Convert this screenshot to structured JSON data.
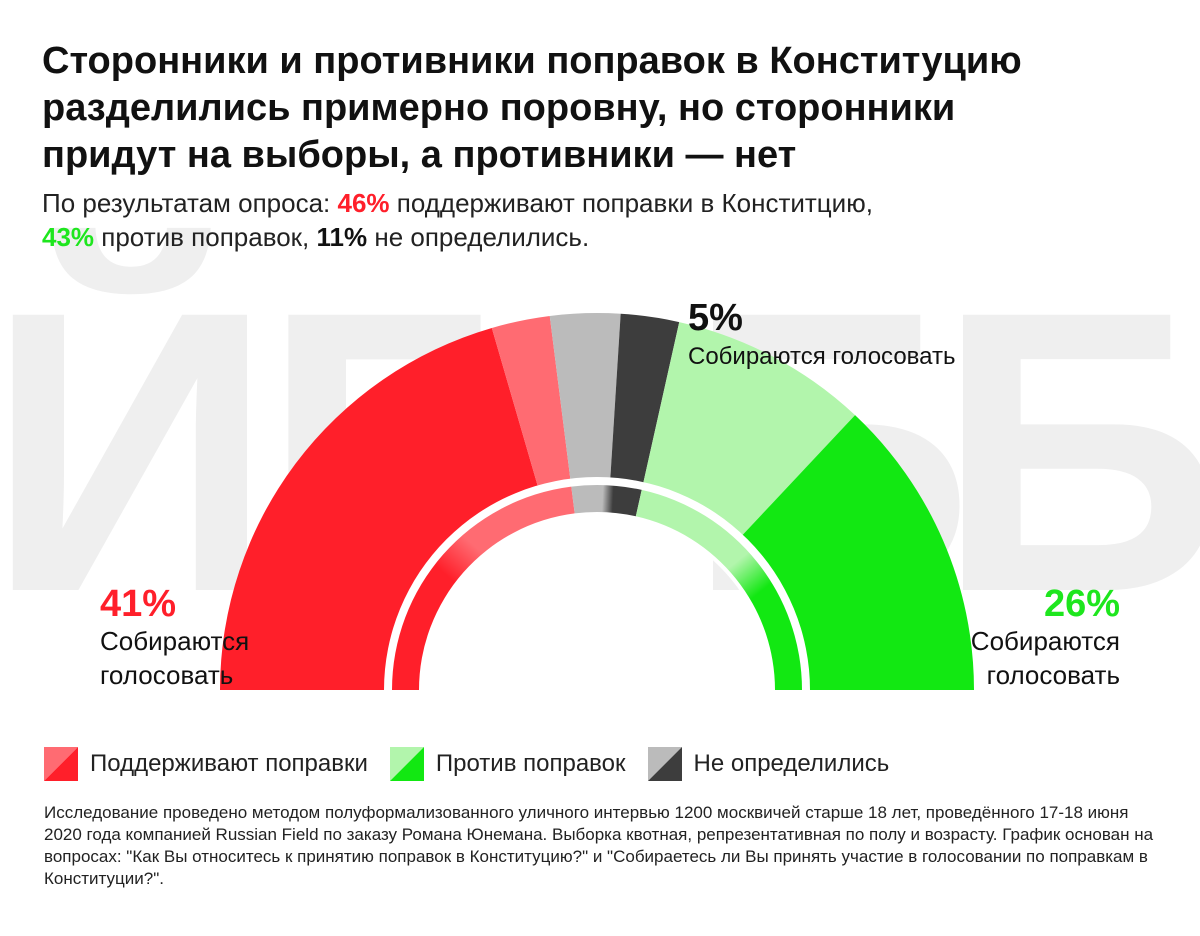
{
  "header": {
    "title": "Сторонники и противники поправок в Конституцию\nразделились примерно поровну, но сторонники\nпридут на выборы, а противники — нет",
    "subtitle": {
      "part1": "По результатам опроса: ",
      "support_pct": "46%",
      "part2": "  поддерживают поправки в Конститцию,",
      "against_pct": "43%",
      "part3": " против поправок, ",
      "undecided_pct": "11%",
      "part4": " не определились."
    }
  },
  "chart_data": {
    "type": "pie",
    "title": "",
    "shape": "semicircle-donut",
    "outer_ring": [
      {
        "group": "support",
        "voting": "yes",
        "value": 41,
        "color": "#ff1f2a"
      },
      {
        "group": "support",
        "voting": "no",
        "value": 5,
        "color": "#ff6b72"
      },
      {
        "group": "undecided",
        "voting": "no",
        "value": 6,
        "color": "#bbbbbb"
      },
      {
        "group": "undecided",
        "voting": "yes",
        "value": 5,
        "color": "#3d3d3d"
      },
      {
        "group": "against",
        "voting": "no",
        "value": 17,
        "color": "#b2f5ac"
      },
      {
        "group": "against",
        "voting": "yes",
        "value": 26,
        "color": "#12e812"
      }
    ],
    "inner_ring": [
      {
        "group": "support",
        "value": 46,
        "colors": [
          "#ff1f2a",
          "#ff6b72"
        ]
      },
      {
        "group": "undecided",
        "value": 11,
        "colors": [
          "#bbbbbb",
          "#3d3d3d"
        ]
      },
      {
        "group": "against",
        "value": 43,
        "colors": [
          "#b2f5ac",
          "#12e812"
        ]
      }
    ],
    "annotations": [
      {
        "for": "support-voting",
        "value": "41%",
        "text": "Собираются\nголосовать",
        "color": "#ff1f2a"
      },
      {
        "for": "undecided-voting",
        "value": "5%",
        "text": "Собираются голосовать",
        "color": "#111111"
      },
      {
        "for": "against-voting",
        "value": "26%",
        "text": "Собираются\nголосовать",
        "color": "#1ee61e"
      }
    ]
  },
  "watermark": {
    "letters": [
      "Й",
      "Г",
      "Б",
      "Б"
    ],
    "color": "#efefef"
  },
  "legend": [
    {
      "label": "Поддерживают поправки",
      "colors": [
        "#ff6b72",
        "#ff1f2a"
      ]
    },
    {
      "label": "Против поправок",
      "colors": [
        "#b2f5ac",
        "#12e812"
      ]
    },
    {
      "label": "Не определились",
      "colors": [
        "#bbbbbb",
        "#3d3d3d"
      ]
    }
  ],
  "footnote": "Исследование проведено методом полуформализованного уличного интервью 1200 москвичей старше 18 лет, проведённого 17-18 июня 2020 года компанией Russian Field по заказу Романа Юнемана. Выборка квотная, репрезентативная по полу и возрасту. График основан на вопросах: \"Как Вы относитесь к принятию поправок в Конституцию?\" и \"Собираетесь ли Вы принять участие в голосовании по поправкам в Конституции?\"."
}
